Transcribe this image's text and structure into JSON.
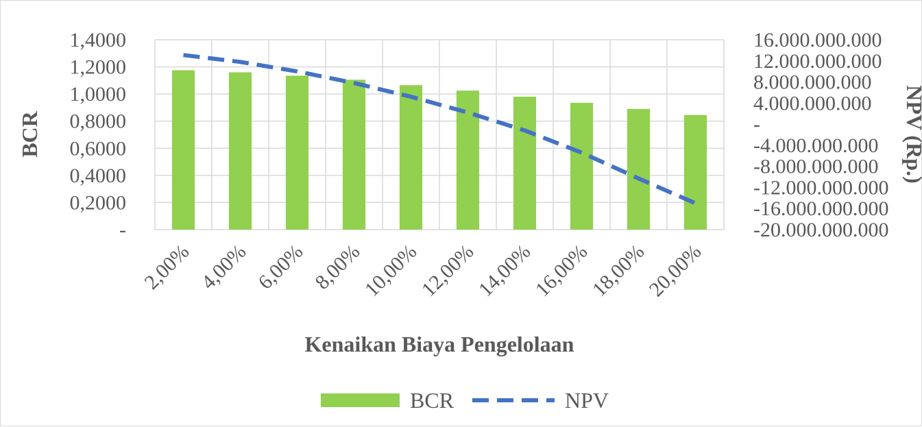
{
  "chart_data": {
    "type": "bar+line",
    "title": "",
    "categories": [
      "2,00%",
      "4,00%",
      "6,00%",
      "8,00%",
      "10,00%",
      "12,00%",
      "14,00%",
      "16,00%",
      "18,00%",
      "20,00%"
    ],
    "xlabel": "Kenaikan Biaya Pengelolaan",
    "ylabel_left": "BCR",
    "ylabel_right": "NPV (Rp.)",
    "ylim_left": [
      0,
      1.4
    ],
    "ylim_right": [
      -20000000000,
      16000000000
    ],
    "yticks_left": [
      "-",
      "0,2000",
      "0,4000",
      "0,6000",
      "0,8000",
      "1,0000",
      "1,2000",
      "1,4000"
    ],
    "yticks_right": [
      "-20.000.000.000",
      "-16.000.000.000",
      "-12.000.000.000",
      "-8.000.000.000",
      "-4.000.000.000",
      "-",
      "4.000.000.000",
      "8.000.000.000",
      "12.000.000.000",
      "16.000.000.000"
    ],
    "grid": true,
    "legend_position": "bottom",
    "series": [
      {
        "name": "BCR",
        "kind": "bar",
        "axis": "left",
        "color": "#92d050",
        "values": [
          1.175,
          1.16,
          1.135,
          1.105,
          1.065,
          1.025,
          0.98,
          0.935,
          0.89,
          0.845
        ]
      },
      {
        "name": "NPV",
        "kind": "line",
        "style": "dashed",
        "axis": "right",
        "color": "#4472c4",
        "values": [
          13100000000,
          11800000000,
          10000000000,
          7800000000,
          5200000000,
          2200000000,
          -1200000000,
          -5400000000,
          -10300000000,
          -15000000000
        ]
      }
    ]
  }
}
